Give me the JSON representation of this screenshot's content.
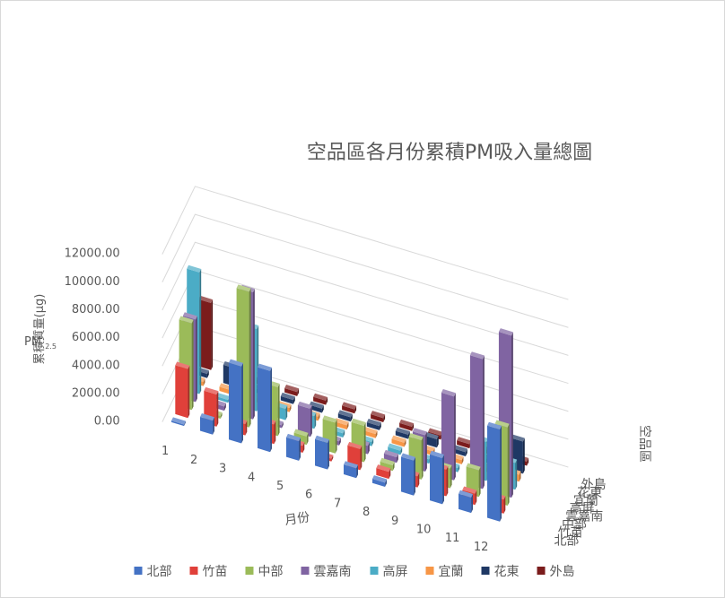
{
  "chart_data": {
    "type": "bar",
    "title": "空品區各月份累積PM吸入量總圖",
    "ylabel_main": "PM",
    "ylabel_sub": "2.5",
    "ylabel_line2": "累積質量(μg)",
    "xlabel": "月份",
    "zlabel": "空品區",
    "ylim": [
      0,
      12000
    ],
    "yticks": [
      "0.00",
      "2000.00",
      "4000.00",
      "6000.00",
      "8000.00",
      "10000.00",
      "12000.00"
    ],
    "categories": [
      "1",
      "2",
      "3",
      "4",
      "5",
      "6",
      "7",
      "8",
      "9",
      "10",
      "11",
      "12"
    ],
    "series": [
      {
        "name": "北部",
        "color": "#4472c4",
        "values": [
          100,
          1000,
          5500,
          5800,
          1400,
          1900,
          700,
          300,
          2500,
          3300,
          1100,
          6600
        ]
      },
      {
        "name": "竹苗",
        "color": "#e0403a",
        "values": [
          3500,
          2300,
          800,
          1400,
          500,
          200,
          1500,
          500,
          800,
          1900,
          800,
          1000
        ]
      },
      {
        "name": "中部",
        "color": "#9bbb59",
        "values": [
          6200,
          200,
          9700,
          3500,
          600,
          2200,
          2600,
          400,
          2800,
          1400,
          1900,
          5600
        ]
      },
      {
        "name": "雲嘉南",
        "color": "#8064a2",
        "values": [
          5900,
          300,
          9100,
          200,
          2000,
          300,
          600,
          400,
          2600,
          6000,
          9300,
          11600
        ]
      },
      {
        "name": "高屏",
        "color": "#4bacc6",
        "values": [
          8700,
          200,
          5900,
          800,
          900,
          300,
          300,
          300,
          300,
          300,
          2800,
          1900
        ]
      },
      {
        "name": "宜蘭",
        "color": "#f79646",
        "values": [
          300,
          300,
          300,
          300,
          300,
          300,
          300,
          300,
          300,
          300,
          300,
          500
        ]
      },
      {
        "name": "花東",
        "color": "#1f3864",
        "values": [
          300,
          1300,
          300,
          300,
          300,
          300,
          300,
          300,
          600,
          300,
          300,
          2300
        ]
      },
      {
        "name": "外島",
        "color": "#7b1c1c",
        "values": [
          4800,
          300,
          300,
          300,
          300,
          300,
          300,
          300,
          300,
          300,
          300,
          300
        ]
      }
    ],
    "grid": true,
    "legend_position": "bottom"
  }
}
